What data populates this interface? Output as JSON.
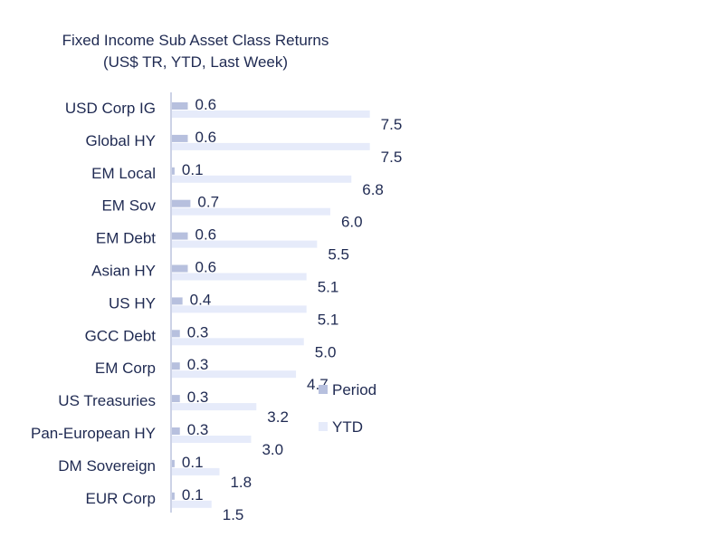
{
  "chart_data": {
    "type": "bar",
    "orientation": "horizontal",
    "title": "Fixed Income Sub Asset Class Returns",
    "subtitle": "(US$ TR, YTD, Last Week)",
    "categories": [
      "USD Corp IG",
      "Global HY",
      "EM Local",
      "EM Sov",
      "EM Debt",
      "Asian HY",
      "US HY",
      "GCC Debt",
      "EM Corp",
      "US Treasuries",
      "Pan-European HY",
      "DM Sovereign",
      "EUR Corp"
    ],
    "series": [
      {
        "name": "Period",
        "values": [
          0.6,
          0.6,
          0.1,
          0.7,
          0.6,
          0.6,
          0.4,
          0.3,
          0.3,
          0.3,
          0.3,
          0.1,
          0.1
        ],
        "labels": [
          "0.6",
          "0.6",
          "0.1",
          "0.7",
          "0.6",
          "0.6",
          "0.4",
          "0.3",
          "0.3",
          "0.3",
          "0.3",
          "0.1",
          "0.1"
        ],
        "color": "#b7c0de"
      },
      {
        "name": "YTD",
        "values": [
          7.5,
          7.5,
          6.8,
          6.0,
          5.5,
          5.1,
          5.1,
          5.0,
          4.7,
          3.2,
          3.0,
          1.8,
          1.5
        ],
        "labels": [
          "7.5",
          "7.5",
          "6.8",
          "6.0",
          "5.5",
          "5.1",
          "5.1",
          "5.0",
          "4.7",
          "3.2",
          "3.0",
          "1.8",
          "1.5"
        ],
        "color": "#e6ebfa"
      }
    ],
    "legend_position": "right",
    "grid": false,
    "xlim": [
      0,
      8.3
    ],
    "axis_color": "#9aa6cc",
    "text_color": "#1f2a52"
  }
}
